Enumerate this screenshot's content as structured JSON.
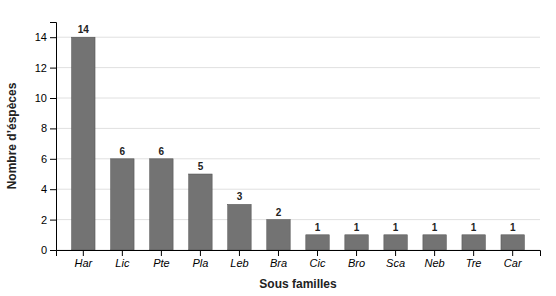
{
  "chart_data": {
    "type": "bar",
    "categories": [
      "Har",
      "Lic",
      "Pte",
      "Pla",
      "Leb",
      "Bra",
      "Cic",
      "Bro",
      "Sca",
      "Neb",
      "Tre",
      "Car"
    ],
    "values": [
      14,
      6,
      6,
      5,
      3,
      2,
      1,
      1,
      1,
      1,
      1,
      1
    ],
    "color": "#737373",
    "xlabel": "Sous familles",
    "ylabel": "Nombre d’éspèces",
    "ylim": [
      0,
      15
    ],
    "yticks": [
      0,
      2,
      4,
      6,
      8,
      10,
      12,
      14
    ],
    "grid": true,
    "data_labels": true
  }
}
